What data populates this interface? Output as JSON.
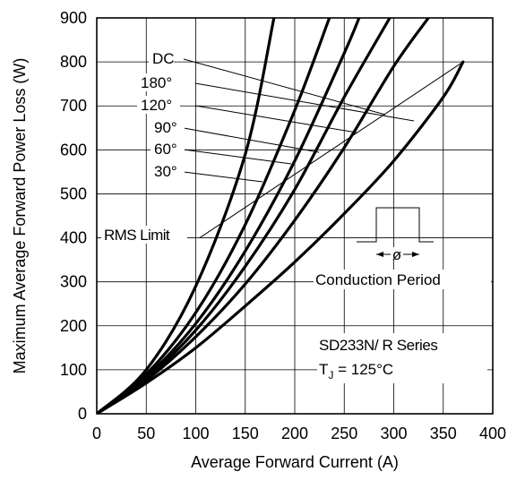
{
  "chart_data": {
    "type": "line",
    "xlabel": "Average Forward Current (A)",
    "ylabel": "Maximum Average Forward Power Loss (W)",
    "xlim": [
      0,
      400
    ],
    "ylim": [
      0,
      900
    ],
    "xticks": [
      "0",
      "50",
      "100",
      "150",
      "200",
      "250",
      "300",
      "350",
      "400"
    ],
    "yticks": [
      "0",
      "100",
      "200",
      "300",
      "400",
      "500",
      "600",
      "700",
      "800",
      "900"
    ],
    "grid": true,
    "series": [
      {
        "name": "DC",
        "x": [
          0,
          50,
          100,
          150,
          200,
          250,
          300,
          350,
          370
        ],
        "y": [
          0,
          70,
          150,
          245,
          345,
          455,
          575,
          720,
          800
        ]
      },
      {
        "name": "180°",
        "x": [
          0,
          50,
          100,
          150,
          200,
          250,
          300,
          335
        ],
        "y": [
          0,
          76,
          175,
          295,
          440,
          605,
          790,
          900
        ]
      },
      {
        "name": "120°",
        "x": [
          0,
          50,
          100,
          150,
          200,
          250,
          296
        ],
        "y": [
          0,
          80,
          190,
          335,
          510,
          720,
          900
        ]
      },
      {
        "name": "90°",
        "x": [
          0,
          50,
          100,
          150,
          200,
          250,
          265
        ],
        "y": [
          0,
          84,
          205,
          370,
          575,
          820,
          900
        ]
      },
      {
        "name": "60°",
        "x": [
          0,
          50,
          100,
          150,
          200,
          235
        ],
        "y": [
          0,
          90,
          230,
          430,
          690,
          900
        ]
      },
      {
        "name": "30°",
        "x": [
          0,
          50,
          100,
          150,
          179
        ],
        "y": [
          0,
          100,
          290,
          590,
          900
        ]
      }
    ],
    "rms_limit": {
      "label": "RMS Limit",
      "x": [
        104,
        370
      ],
      "y": [
        400,
        800
      ]
    },
    "annotations": {
      "conduction": "Conduction Period",
      "phi": "ø",
      "device": "SD233N/ R Series",
      "tj_prefix": "T",
      "tj_sub": "J",
      "tj_suffix": " = 125°C"
    }
  }
}
